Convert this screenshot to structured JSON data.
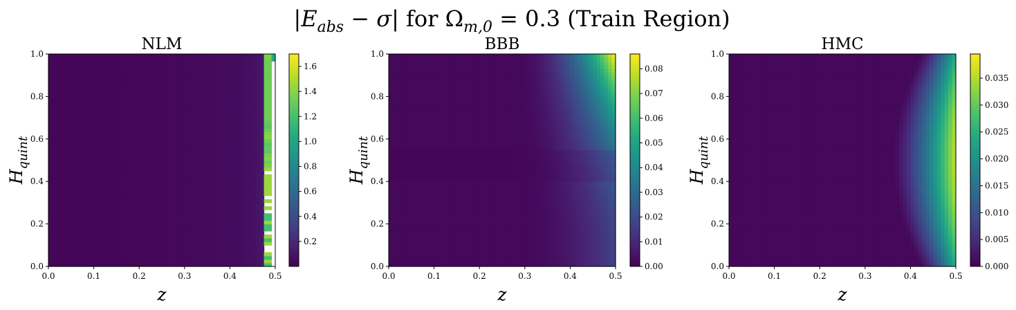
{
  "figure": {
    "suptitle": "|E_abs − σ| for Ω_m,0 = 0.3 (Train Region)",
    "suptitle_parts": {
      "bar_open": "|",
      "E": "E",
      "abs": "abs",
      "minus_sigma": " − σ",
      "bar_close": "|",
      "for_text": " for ",
      "Omega": "Ω",
      "m0": "m,0",
      "eq_value": " = 0.3 ",
      "region": "(Train Region)"
    }
  },
  "colormap": "viridis",
  "chart_data": [
    {
      "type": "heatmap",
      "title": "NLM",
      "xlabel": "z",
      "ylabel": "H",
      "ylabel_sub": "quint",
      "xlim": [
        0.0,
        0.5
      ],
      "ylim": [
        0.0,
        1.0
      ],
      "x_ticks": [
        "0.0",
        "0.1",
        "0.2",
        "0.3",
        "0.4",
        "0.5"
      ],
      "y_ticks": [
        "0.0",
        "0.2",
        "0.4",
        "0.6",
        "0.8",
        "1.0"
      ],
      "colorbar": {
        "range": [
          0.0,
          1.7
        ],
        "ticks": [
          "0.2",
          "0.4",
          "0.6",
          "0.8",
          "1.0",
          "1.2",
          "1.4",
          "1.6"
        ]
      },
      "description_of_field": "near-zero error across z; sharp rise near z≈0.48–0.5 with values up to ~1.7 and missing (white) cells at the right edge"
    },
    {
      "type": "heatmap",
      "title": "BBB",
      "xlabel": "z",
      "ylabel": "H",
      "ylabel_sub": "quint",
      "xlim": [
        0.0,
        0.5
      ],
      "ylim": [
        0.0,
        1.0
      ],
      "x_ticks": [
        "0.0",
        "0.1",
        "0.2",
        "0.3",
        "0.4",
        "0.5"
      ],
      "y_ticks": [
        "0.0",
        "0.2",
        "0.4",
        "0.6",
        "0.8",
        "1.0"
      ],
      "colorbar": {
        "range": [
          0.0,
          0.086
        ],
        "ticks": [
          "0.00",
          "0.01",
          "0.02",
          "0.03",
          "0.04",
          "0.05",
          "0.06",
          "0.07",
          "0.08"
        ]
      },
      "description_of_field": "error grows with z and H; maximum ~0.086 at top-right corner (z=0.5, H=1.0)"
    },
    {
      "type": "heatmap",
      "title": "HMC",
      "xlabel": "z",
      "ylabel": "H",
      "ylabel_sub": "quint",
      "xlim": [
        0.0,
        0.5
      ],
      "ylim": [
        0.0,
        1.0
      ],
      "x_ticks": [
        "0.0",
        "0.1",
        "0.2",
        "0.3",
        "0.4",
        "0.5"
      ],
      "y_ticks": [
        "0.0",
        "0.2",
        "0.4",
        "0.6",
        "0.8",
        "1.0"
      ],
      "colorbar": {
        "range": [
          0.0,
          0.0395
        ],
        "ticks": [
          "0.000",
          "0.005",
          "0.010",
          "0.015",
          "0.020",
          "0.025",
          "0.030",
          "0.035"
        ]
      },
      "description_of_field": "error concentrated at high z, peaking ~0.039 around H≈0.5 at z=0.5, bow-shaped front"
    }
  ]
}
